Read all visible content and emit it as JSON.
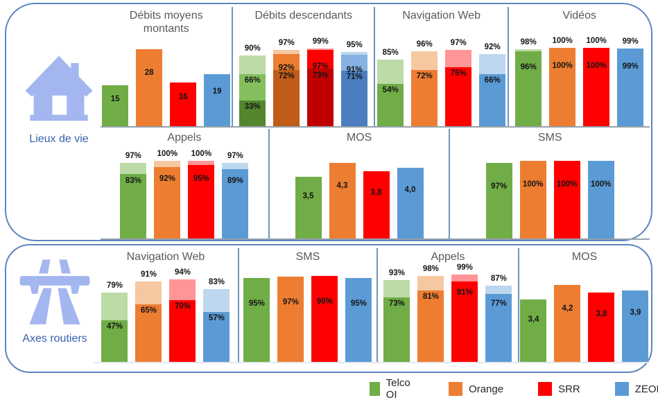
{
  "legend": {
    "items": [
      {
        "id": "telco_oi",
        "label": "Telco OI",
        "color": "#70ad47"
      },
      {
        "id": "orange",
        "label": "Orange",
        "color": "#ed7d31"
      },
      {
        "id": "srr",
        "label": "SRR",
        "color": "#fe0000"
      },
      {
        "id": "zeop",
        "label": "ZEOP",
        "color": "#5b9bd5"
      }
    ]
  },
  "palette": {
    "telco_oi": {
      "light": "#bcdba6",
      "mid": "#84bf5e",
      "main": "#70ad47",
      "dark": "#55862f"
    },
    "orange": {
      "light": "#f6c8a2",
      "mid": "#ed7d31",
      "main": "#ed7d31",
      "dark": "#c05c17"
    },
    "srr": {
      "light": "#ff9596",
      "mid": "#fe0000",
      "main": "#fe0000",
      "dark": "#c00000"
    },
    "zeop": {
      "light": "#bdd7ee",
      "mid": "#85b2e2",
      "main": "#5b9bd5",
      "dark": "#4a7ec0"
    }
  },
  "sections": [
    {
      "id": "lieux-de-vie",
      "label": "Lieux de vie",
      "icon": "house-icon"
    },
    {
      "id": "axes-routiers",
      "label": "Axes routiers",
      "icon": "motorway-icon"
    }
  ],
  "chart_data": [
    {
      "section": "Lieux de vie",
      "row": "top-1",
      "type": "bar",
      "title": "Débits moyens\nmontants",
      "ymax": 28.5,
      "categories": [
        "Telco OI",
        "Orange",
        "SRR",
        "ZEOP"
      ],
      "bars": [
        {
          "operator": "telco_oi",
          "total": 15,
          "label": "15"
        },
        {
          "operator": "orange",
          "total": 28,
          "label": "28"
        },
        {
          "operator": "srr",
          "total": 16,
          "label": "16"
        },
        {
          "operator": "zeop",
          "total": 19,
          "label": "19"
        }
      ]
    },
    {
      "section": "Lieux de vie",
      "row": "top-1",
      "type": "bar",
      "title": "Débits descendants",
      "ymax": 100,
      "categories": [
        "Telco OI",
        "Orange",
        "SRR",
        "ZEOP"
      ],
      "bars": [
        {
          "operator": "telco_oi",
          "total": 90,
          "top_label": "90%",
          "marks": [
            {
              "value": 66,
              "label": "66%"
            },
            {
              "value": 33,
              "label": "33%"
            }
          ]
        },
        {
          "operator": "orange",
          "total": 97,
          "top_label": "97%",
          "marks": [
            {
              "value": 92,
              "label": "92%"
            },
            {
              "value": 72,
              "label": "72%"
            }
          ]
        },
        {
          "operator": "srr",
          "total": 99,
          "top_label": "99%",
          "marks": [
            {
              "value": 97,
              "label": "97%"
            },
            {
              "value": 73,
              "label": "73%"
            }
          ]
        },
        {
          "operator": "zeop",
          "total": 95,
          "top_label": "95%",
          "marks": [
            {
              "value": 91,
              "label": "91%"
            },
            {
              "value": 71,
              "label": "71%"
            }
          ]
        }
      ]
    },
    {
      "section": "Lieux de vie",
      "row": "top-1",
      "type": "bar",
      "title": "Navigation Web",
      "ymax": 100,
      "categories": [
        "Telco OI",
        "Orange",
        "SRR",
        "ZEOP"
      ],
      "bars": [
        {
          "operator": "telco_oi",
          "total": 85,
          "top_label": "85%",
          "marks": [
            {
              "value": 54,
              "label": "54%"
            }
          ]
        },
        {
          "operator": "orange",
          "total": 96,
          "top_label": "96%",
          "marks": [
            {
              "value": 72,
              "label": "72%"
            }
          ]
        },
        {
          "operator": "srr",
          "total": 97,
          "top_label": "97%",
          "marks": [
            {
              "value": 75,
              "label": "75%"
            }
          ]
        },
        {
          "operator": "zeop",
          "total": 92,
          "top_label": "92%",
          "marks": [
            {
              "value": 66,
              "label": "66%"
            }
          ]
        }
      ]
    },
    {
      "section": "Lieux de vie",
      "row": "top-1",
      "type": "bar",
      "title": "Vidéos",
      "ymax": 100,
      "categories": [
        "Telco OI",
        "Orange",
        "SRR",
        "ZEOP"
      ],
      "bars": [
        {
          "operator": "telco_oi",
          "total": 98,
          "top_label": "98%",
          "marks": [
            {
              "value": 96,
              "label": "96%"
            }
          ]
        },
        {
          "operator": "orange",
          "total": 100,
          "top_label": "100%",
          "marks": [
            {
              "value": 100,
              "label": "100%"
            }
          ]
        },
        {
          "operator": "srr",
          "total": 100,
          "top_label": "100%",
          "marks": [
            {
              "value": 100,
              "label": "100%"
            }
          ]
        },
        {
          "operator": "zeop",
          "total": 99,
          "top_label": "99%",
          "marks": [
            {
              "value": 99,
              "label": "99%"
            }
          ]
        }
      ]
    },
    {
      "section": "Lieux de vie",
      "row": "top-2",
      "type": "bar",
      "title": "Appels",
      "ymax": 100,
      "categories": [
        "Telco OI",
        "Orange",
        "SRR",
        "ZEOP"
      ],
      "bars": [
        {
          "operator": "telco_oi",
          "total": 97,
          "top_label": "97%",
          "marks": [
            {
              "value": 83,
              "label": "83%"
            }
          ]
        },
        {
          "operator": "orange",
          "total": 100,
          "top_label": "100%",
          "marks": [
            {
              "value": 92,
              "label": "92%"
            }
          ]
        },
        {
          "operator": "srr",
          "total": 100,
          "top_label": "100%",
          "marks": [
            {
              "value": 95,
              "label": "95%"
            }
          ]
        },
        {
          "operator": "zeop",
          "total": 97,
          "top_label": "97%",
          "marks": [
            {
              "value": 89,
              "label": "89%"
            }
          ]
        }
      ]
    },
    {
      "section": "Lieux de vie",
      "row": "top-2",
      "type": "bar",
      "title": "MOS",
      "ymax": 4.4,
      "categories": [
        "Telco OI",
        "Orange",
        "SRR",
        "ZEOP"
      ],
      "bars": [
        {
          "operator": "telco_oi",
          "total": 3.5,
          "label": "3,5"
        },
        {
          "operator": "orange",
          "total": 4.3,
          "label": "4,3"
        },
        {
          "operator": "srr",
          "total": 3.8,
          "label": "3,8"
        },
        {
          "operator": "zeop",
          "total": 4.0,
          "label": "4,0"
        }
      ]
    },
    {
      "section": "Lieux de vie",
      "row": "top-2",
      "type": "bar",
      "title": "SMS",
      "ymax": 100,
      "categories": [
        "Telco OI",
        "Orange",
        "SRR",
        "ZEOP"
      ],
      "bars": [
        {
          "operator": "telco_oi",
          "total": 97,
          "label": "97%"
        },
        {
          "operator": "orange",
          "total": 100,
          "label": "100%"
        },
        {
          "operator": "srr",
          "total": 100,
          "label": "100%"
        },
        {
          "operator": "zeop",
          "total": 100,
          "label": "100%"
        }
      ]
    },
    {
      "section": "Axes routiers",
      "row": "bottom-1",
      "type": "bar",
      "title": "Navigation Web",
      "ymax": 100,
      "categories": [
        "Telco OI",
        "Orange",
        "SRR",
        "ZEOP"
      ],
      "bars": [
        {
          "operator": "telco_oi",
          "total": 79,
          "top_label": "79%",
          "marks": [
            {
              "value": 47,
              "label": "47%"
            }
          ]
        },
        {
          "operator": "orange",
          "total": 91,
          "top_label": "91%",
          "marks": [
            {
              "value": 65,
              "label": "65%"
            }
          ]
        },
        {
          "operator": "srr",
          "total": 94,
          "top_label": "94%",
          "marks": [
            {
              "value": 70,
              "label": "70%"
            }
          ]
        },
        {
          "operator": "zeop",
          "total": 83,
          "top_label": "83%",
          "marks": [
            {
              "value": 57,
              "label": "57%"
            }
          ]
        }
      ]
    },
    {
      "section": "Axes routiers",
      "row": "bottom-1",
      "type": "bar",
      "title": "SMS",
      "ymax": 100,
      "categories": [
        "Telco OI",
        "Orange",
        "SRR",
        "ZEOP"
      ],
      "bars": [
        {
          "operator": "telco_oi",
          "total": 95,
          "label": "95%"
        },
        {
          "operator": "orange",
          "total": 97,
          "label": "97%"
        },
        {
          "operator": "srr",
          "total": 98,
          "label": "98%"
        },
        {
          "operator": "zeop",
          "total": 95,
          "label": "95%"
        }
      ]
    },
    {
      "section": "Axes routiers",
      "row": "bottom-1",
      "type": "bar",
      "title": "Appels",
      "ymax": 100,
      "categories": [
        "Telco OI",
        "Orange",
        "SRR",
        "ZEOP"
      ],
      "bars": [
        {
          "operator": "telco_oi",
          "total": 93,
          "top_label": "93%",
          "marks": [
            {
              "value": 73,
              "label": "73%"
            }
          ]
        },
        {
          "operator": "orange",
          "total": 98,
          "top_label": "98%",
          "marks": [
            {
              "value": 81,
              "label": "81%"
            }
          ]
        },
        {
          "operator": "srr",
          "total": 99,
          "top_label": "99%",
          "marks": [
            {
              "value": 91,
              "label": "91%"
            }
          ]
        },
        {
          "operator": "zeop",
          "total": 87,
          "top_label": "87%",
          "marks": [
            {
              "value": 77,
              "label": "77%"
            }
          ]
        }
      ]
    },
    {
      "section": "Axes routiers",
      "row": "bottom-1",
      "type": "bar",
      "title": "MOS",
      "ymax": 4.8,
      "categories": [
        "Telco OI",
        "Orange",
        "SRR",
        "ZEOP"
      ],
      "bars": [
        {
          "operator": "telco_oi",
          "total": 3.4,
          "label": "3,4"
        },
        {
          "operator": "orange",
          "total": 4.2,
          "label": "4,2"
        },
        {
          "operator": "srr",
          "total": 3.8,
          "label": "3,8"
        },
        {
          "operator": "zeop",
          "total": 3.9,
          "label": "3,9"
        }
      ]
    }
  ]
}
